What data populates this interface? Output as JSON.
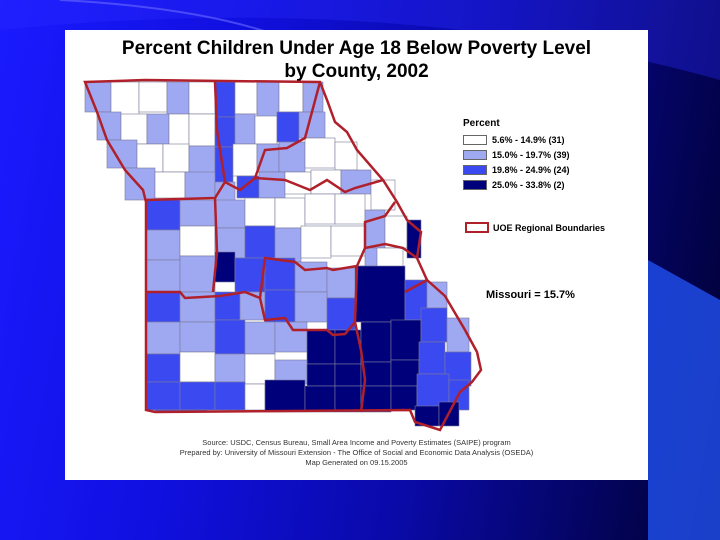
{
  "title_line1": "Percent Children Under Age 18 Below Poverty Level",
  "title_line2": "by County, 2002",
  "legend": {
    "title": "Percent",
    "items": [
      {
        "label": "5.6% - 14.9% (31)",
        "color": "#ffffff"
      },
      {
        "label": "15.0% - 19.7% (39)",
        "color": "#9fa9f2"
      },
      {
        "label": "19.8% - 24.9% (24)",
        "color": "#3b4af0"
      },
      {
        "label": "25.0% - 33.8% (2)",
        "color": "#00007a"
      }
    ],
    "boundary_label": "UOE Regional Boundaries",
    "boundary_color": "#b0202a"
  },
  "state_average": "Missouri = 15.7%",
  "source": {
    "line1": "Source: USDC, Census Bureau, Small Area Income and Poverty Estimates (SAIPE) program",
    "line2": "Prepared by: University of Missouri Extension - The Office of Social and Economic Data Analysis (OSEDA)",
    "line3": "Map Generated on 09.15.2005"
  }
}
